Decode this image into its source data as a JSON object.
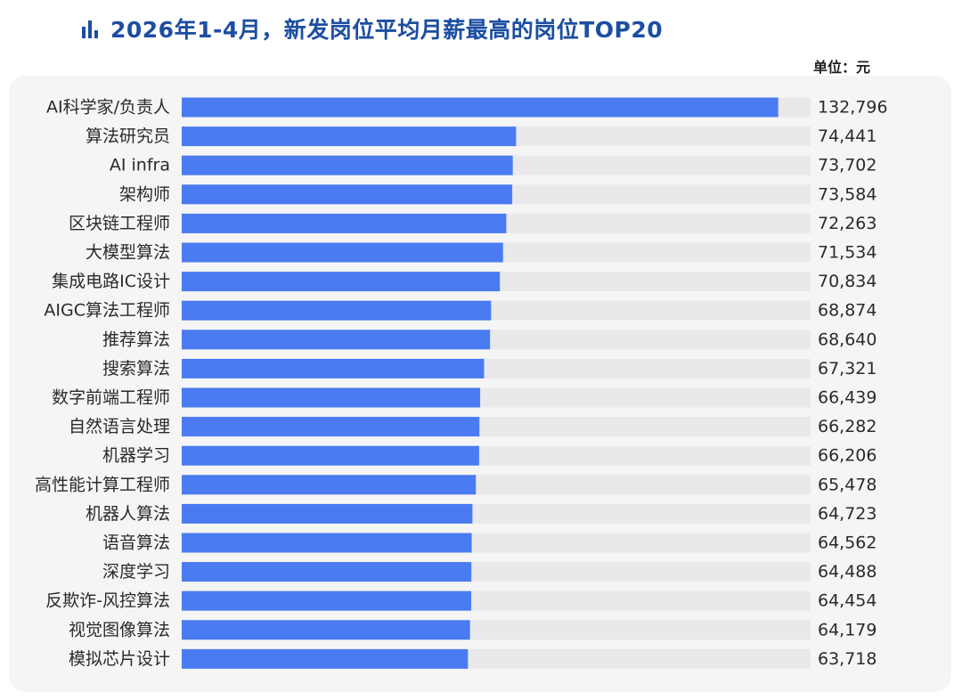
{
  "header": {
    "title": "2026年1-4月，新发岗位平均月薪最高的岗位TOP20",
    "unit": "单位：元",
    "icon": "bar-chart-icon"
  },
  "colors": {
    "title": "#1c4ea2",
    "bar": "#4a7bf0",
    "track": "#e9e9eb",
    "panel": "#f5f5f5"
  },
  "chart_data": {
    "type": "bar",
    "orientation": "horizontal",
    "title": "2026年1-4月，新发岗位平均月薪最高的岗位TOP20",
    "unit": "单位：元",
    "categories": [
      "AI科学家/负责人",
      "算法研究员",
      "AI infra",
      "架构师",
      "区块链工程师",
      "大模型算法",
      "集成电路IC设计",
      "AIGC算法工程师",
      "推荐算法",
      "搜索算法",
      "数字前端工程师",
      "自然语言处理",
      "机器学习",
      "高性能计算工程师",
      "机器人算法",
      "语音算法",
      "深度学习",
      "反欺诈-风控算法",
      "视觉图像算法",
      "模拟芯片设计"
    ],
    "values": [
      132796,
      74441,
      73702,
      73584,
      72263,
      71534,
      70834,
      68874,
      68640,
      67321,
      66439,
      66282,
      66206,
      65478,
      64723,
      64562,
      64488,
      64454,
      64179,
      63718
    ],
    "value_labels": [
      "132,796",
      "74,441",
      "73,702",
      "73,584",
      "72,263",
      "71,534",
      "70,834",
      "68,874",
      "68,640",
      "67,321",
      "66,439",
      "66,282",
      "66,206",
      "65,478",
      "64,723",
      "64,562",
      "64,488",
      "64,454",
      "64,179",
      "63,718"
    ],
    "xlim": [
      0,
      140000
    ],
    "grid": false,
    "legend": "none"
  }
}
